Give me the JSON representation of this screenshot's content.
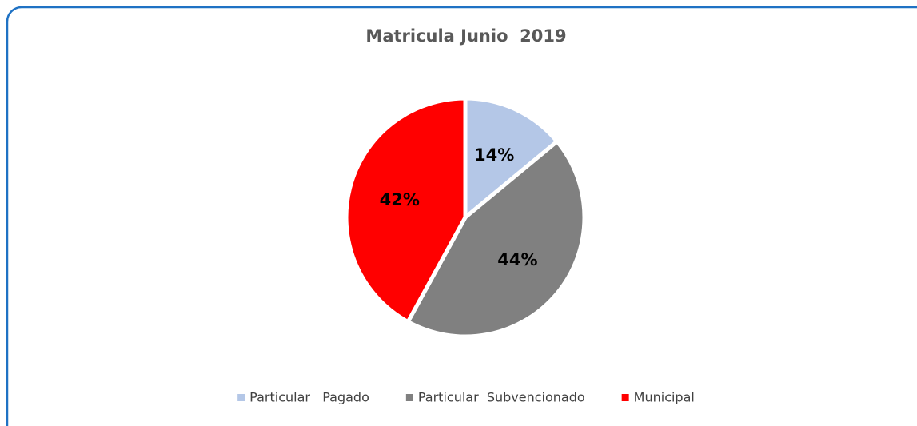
{
  "chart_data": {
    "type": "pie",
    "title": "Matricula Junio  2019",
    "categories": [
      "Particular   Pagado",
      "Particular  Subvencionado",
      "Municipal"
    ],
    "values": [
      14,
      44,
      42
    ],
    "value_labels": [
      "14%",
      "44%",
      "42%"
    ],
    "colors": [
      "#b4c7e7",
      "#808080",
      "#ff0000"
    ],
    "legend": "bottom"
  }
}
